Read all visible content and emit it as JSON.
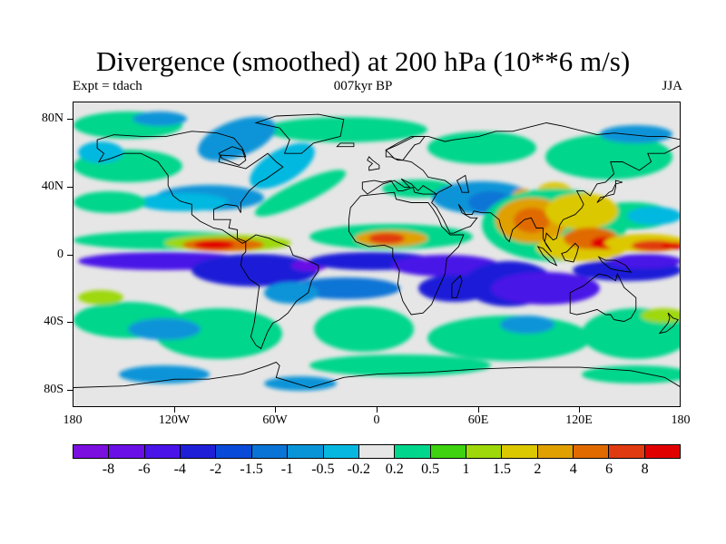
{
  "header": {
    "title": "Divergence (smoothed) at 200 hPa (10**6 m/s)",
    "left_label": "Expt = tdach",
    "center_label": "007kyr BP",
    "right_label": "JJA"
  },
  "map": {
    "projection": "cylindrical-equidistant",
    "lon_range": [
      -180,
      180
    ],
    "lat_range": [
      -90,
      90
    ],
    "background_color": "#e6e6e6",
    "coastline_color": "#000000",
    "lat_labels": [
      "80N",
      "40N",
      "0",
      "40S",
      "80S"
    ],
    "lon_labels": [
      "180",
      "120W",
      "60W",
      "0",
      "60E",
      "120E",
      "180"
    ]
  },
  "colorbar": {
    "colors": [
      "#7b0fe0",
      "#6a10e6",
      "#4a14e8",
      "#1f1fd8",
      "#0a4ad8",
      "#0a74d6",
      "#0a94d8",
      "#06b8e0",
      "#e6e6e6",
      "#00d68c",
      "#3ed210",
      "#9ed80a",
      "#dcc800",
      "#e0a000",
      "#e06a00",
      "#e03a10",
      "#e00000"
    ],
    "labels": [
      "-8",
      "-6",
      "-4",
      "-2",
      "-1.5",
      "-1",
      "-0.5",
      "-0.2",
      "0.2",
      "0.5",
      "1",
      "1.5",
      "2",
      "4",
      "6",
      "8"
    ]
  }
}
